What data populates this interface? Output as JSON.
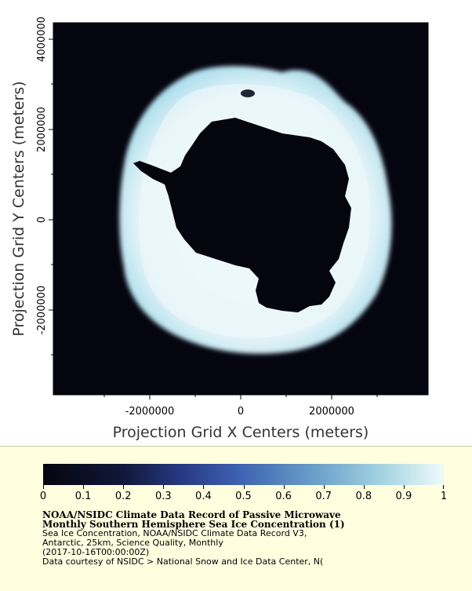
{
  "map": {
    "y_axis_title": "Projection Grid Y Centers (meters)",
    "x_axis_title": "Projection Grid X Centers (meters)",
    "x_ticks": [
      "-2000000",
      "0",
      "2000000"
    ],
    "y_ticks": [
      "4000000",
      "2000000",
      "0",
      "-2000000"
    ],
    "colors": {
      "background": "#050510",
      "ice_edge": "#a9dcec",
      "ice_core": "#e8f6fa",
      "land": "#050510"
    }
  },
  "colorbar": {
    "labels": [
      "0",
      "0.1",
      "0.2",
      "0.3",
      "0.4",
      "0.5",
      "0.6",
      "0.7",
      "0.8",
      "0.9",
      "1"
    ],
    "colors": [
      "#06060f",
      "#10183a",
      "#283a86",
      "#3f65b3",
      "#6aa0c9",
      "#a6d4e2",
      "#eefbfb"
    ]
  },
  "caption": {
    "title_line1": "NOAA/NSIDC Climate Data Record of Passive Microwave",
    "title_line2": "Monthly Southern Hemisphere Sea Ice Concentration (1)",
    "line3": "Sea Ice Concentration, NOAA/NSIDC Climate Data Record V3,",
    "line4": "Antarctic, 25km, Science Quality, Monthly",
    "line5": "(2017-10-16T00:00:00Z)",
    "line6": "Data courtesy of NSIDC > National Snow and Ice Data Center, N("
  }
}
